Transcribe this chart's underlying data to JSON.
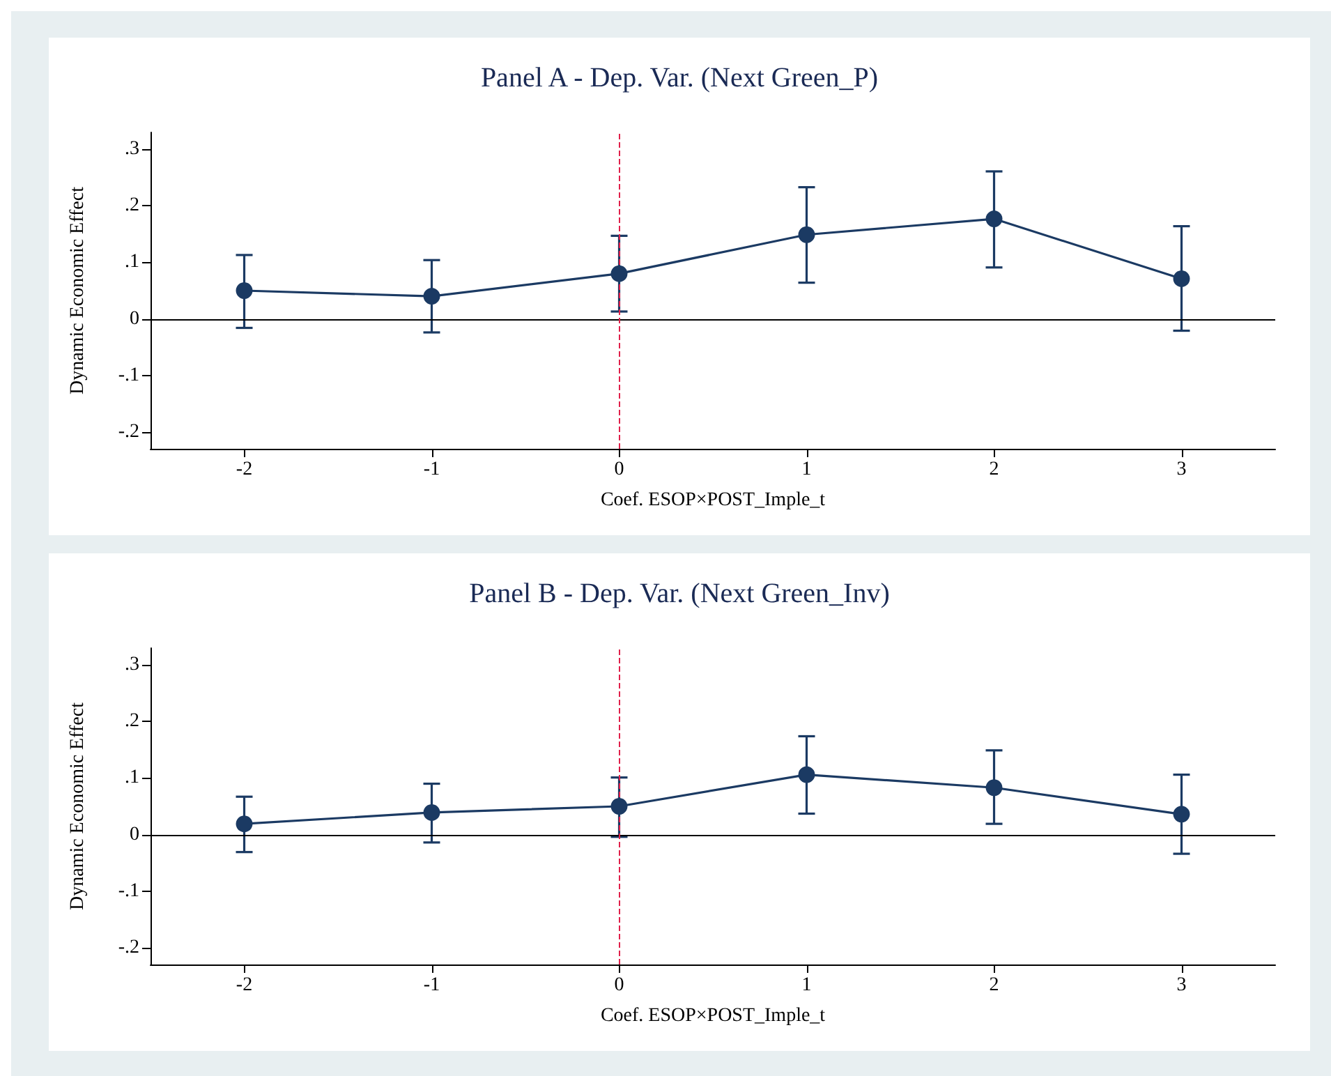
{
  "chart_data": [
    {
      "type": "line",
      "title": "Panel A - Dep. Var. (Next Green_P)",
      "xlabel": "Coef. ESOP×POST_Imple_t",
      "ylabel": "Dynamic Economic Effect",
      "x": [
        -2,
        -1,
        0,
        1,
        2,
        3
      ],
      "series": [
        {
          "color": "#1b3a63",
          "values": [
            0.05,
            0.04,
            0.08,
            0.149,
            0.177,
            0.071
          ],
          "errors": [
            [
              -0.016,
              0.113
            ],
            [
              -0.024,
              0.104
            ],
            [
              0.013,
              0.147
            ],
            [
              0.064,
              0.233
            ],
            [
              0.091,
              0.261
            ],
            [
              -0.021,
              0.164
            ]
          ]
        }
      ],
      "xlim": [
        -2.5,
        3.5
      ],
      "xticks": [
        -2,
        -1,
        0,
        1,
        2,
        3
      ],
      "ylim": [
        -0.23,
        0.33
      ],
      "yticks": [
        {
          "value": -0.2,
          "label": "-.2"
        },
        {
          "value": -0.1,
          "label": "-.1"
        },
        {
          "value": 0,
          "label": "0"
        },
        {
          "value": 0.1,
          "label": ".1"
        },
        {
          "value": 0.2,
          "label": ".2"
        },
        {
          "value": 0.3,
          "label": ".3"
        }
      ],
      "ref_lines": [
        {
          "axis": "y",
          "value": 0,
          "color": "#000000",
          "line_style": "solid"
        },
        {
          "axis": "x",
          "value": 0,
          "color": "#e0204a",
          "line_style": "dashed"
        }
      ],
      "grid": false,
      "marker": "circle",
      "line_style": "solid"
    },
    {
      "type": "line",
      "title": "Panel B - Dep. Var. (Next Green_Inv)",
      "xlabel": "Coef. ESOP×POST_Imple_t",
      "ylabel": "Dynamic Economic Effect",
      "x": [
        -2,
        -1,
        0,
        1,
        2,
        3
      ],
      "series": [
        {
          "color": "#1b3a63",
          "values": [
            0.019,
            0.039,
            0.05,
            0.106,
            0.083,
            0.036
          ],
          "errors": [
            [
              -0.031,
              0.067
            ],
            [
              -0.014,
              0.09
            ],
            [
              -0.004,
              0.101
            ],
            [
              0.037,
              0.174
            ],
            [
              0.019,
              0.149
            ],
            [
              -0.034,
              0.106
            ]
          ]
        }
      ],
      "xlim": [
        -2.5,
        3.5
      ],
      "xticks": [
        -2,
        -1,
        0,
        1,
        2,
        3
      ],
      "ylim": [
        -0.23,
        0.33
      ],
      "yticks": [
        {
          "value": -0.2,
          "label": "-.2"
        },
        {
          "value": -0.1,
          "label": "-.1"
        },
        {
          "value": 0,
          "label": "0"
        },
        {
          "value": 0.1,
          "label": ".1"
        },
        {
          "value": 0.2,
          "label": ".2"
        },
        {
          "value": 0.3,
          "label": ".3"
        }
      ],
      "ref_lines": [
        {
          "axis": "y",
          "value": 0,
          "color": "#000000",
          "line_style": "solid"
        },
        {
          "axis": "x",
          "value": 0,
          "color": "#e0204a",
          "line_style": "dashed"
        }
      ],
      "grid": false,
      "marker": "circle",
      "line_style": "solid"
    }
  ]
}
